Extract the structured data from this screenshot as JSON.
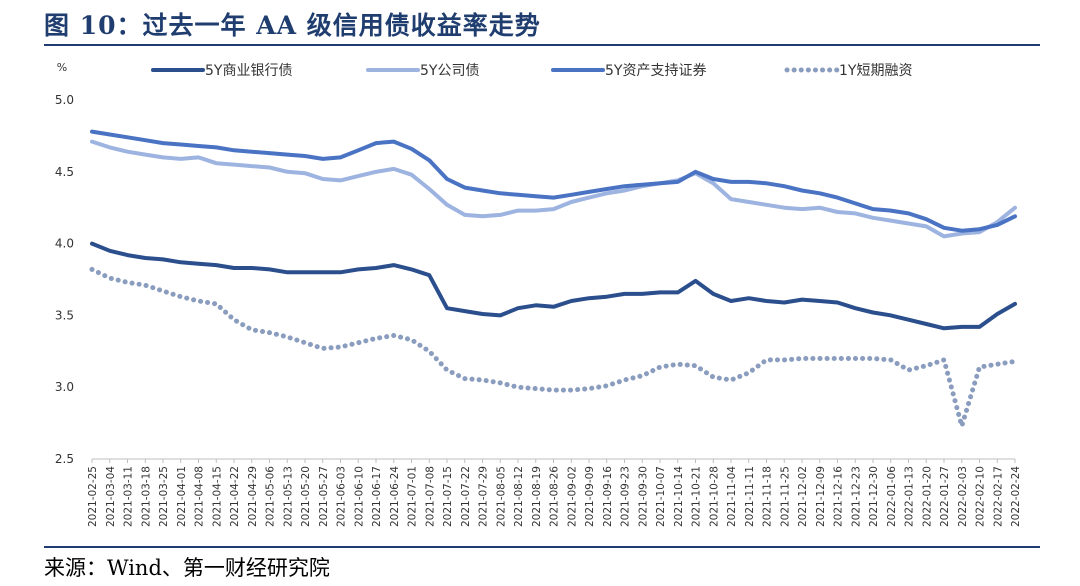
{
  "title": "图 10：过去一年 AA 级信用债收益率走势",
  "source": "来源：Wind、第一财经研究院",
  "chart_data": {
    "type": "line",
    "ylabel": "%",
    "ylim": [
      2.5,
      5.0
    ],
    "yticks": [
      "5.0",
      "4.5",
      "4.0",
      "3.5",
      "3.0",
      "2.5"
    ],
    "grid": false,
    "legend_position": "top",
    "categories": [
      "2021-02-25",
      "2021-03-04",
      "2021-03-11",
      "2021-03-18",
      "2021-03-25",
      "2021-04-01",
      "2021-04-08",
      "2021-04-15",
      "2021-04-22",
      "2021-04-29",
      "2021-05-06",
      "2021-05-13",
      "2021-05-20",
      "2021-05-27",
      "2021-06-03",
      "2021-06-10",
      "2021-06-17",
      "2021-06-24",
      "2021-07-01",
      "2021-07-08",
      "2021-07-15",
      "2021-07-22",
      "2021-07-29",
      "2021-08-05",
      "2021-08-12",
      "2021-08-19",
      "2021-08-26",
      "2021-09-02",
      "2021-09-09",
      "2021-09-16",
      "2021-09-23",
      "2021-09-30",
      "2021-10-07",
      "2021-10-14",
      "2021-10-21",
      "2021-10-28",
      "2021-11-04",
      "2021-11-11",
      "2021-11-18",
      "2021-11-25",
      "2021-12-02",
      "2021-12-09",
      "2021-12-16",
      "2021-12-23",
      "2021-12-30",
      "2022-01-06",
      "2022-01-13",
      "2022-01-20",
      "2022-01-27",
      "2022-02-03",
      "2022-02-10",
      "2022-02-17",
      "2022-02-24"
    ],
    "series": [
      {
        "name": "5Y商业银行债",
        "color": "#2b4e8c",
        "style": "solid",
        "width": 4,
        "values": [
          4.0,
          3.95,
          3.92,
          3.9,
          3.89,
          3.87,
          3.86,
          3.85,
          3.83,
          3.83,
          3.82,
          3.8,
          3.8,
          3.8,
          3.8,
          3.82,
          3.83,
          3.85,
          3.82,
          3.78,
          3.55,
          3.53,
          3.51,
          3.5,
          3.55,
          3.57,
          3.56,
          3.6,
          3.62,
          3.63,
          3.65,
          3.65,
          3.66,
          3.66,
          3.74,
          3.65,
          3.6,
          3.62,
          3.6,
          3.59,
          3.61,
          3.6,
          3.59,
          3.55,
          3.52,
          3.5,
          3.47,
          3.44,
          3.41,
          3.42,
          3.42,
          3.51,
          3.58
        ]
      },
      {
        "name": "5Y公司债",
        "color": "#9db3e0",
        "style": "solid",
        "width": 4,
        "values": [
          4.71,
          4.67,
          4.64,
          4.62,
          4.6,
          4.59,
          4.6,
          4.56,
          4.55,
          4.54,
          4.53,
          4.5,
          4.49,
          4.45,
          4.44,
          4.47,
          4.5,
          4.52,
          4.48,
          4.38,
          4.27,
          4.2,
          4.19,
          4.2,
          4.23,
          4.23,
          4.24,
          4.29,
          4.32,
          4.35,
          4.37,
          4.4,
          4.42,
          4.44,
          4.49,
          4.42,
          4.31,
          4.29,
          4.27,
          4.25,
          4.24,
          4.25,
          4.22,
          4.21,
          4.18,
          4.16,
          4.14,
          4.12,
          4.05,
          4.07,
          4.08,
          4.15,
          4.25
        ]
      },
      {
        "name": "5Y资产支持证券",
        "color": "#4a73c4",
        "style": "solid",
        "width": 4,
        "values": [
          4.78,
          4.76,
          4.74,
          4.72,
          4.7,
          4.69,
          4.68,
          4.67,
          4.65,
          4.64,
          4.63,
          4.62,
          4.61,
          4.59,
          4.6,
          4.65,
          4.7,
          4.71,
          4.66,
          4.58,
          4.45,
          4.39,
          4.37,
          4.35,
          4.34,
          4.33,
          4.32,
          4.34,
          4.36,
          4.38,
          4.4,
          4.41,
          4.42,
          4.43,
          4.5,
          4.45,
          4.43,
          4.43,
          4.42,
          4.4,
          4.37,
          4.35,
          4.32,
          4.28,
          4.24,
          4.23,
          4.21,
          4.17,
          4.11,
          4.09,
          4.1,
          4.13,
          4.19
        ]
      },
      {
        "name": "1Y短期融资",
        "color": "#8a9dbf",
        "style": "dotted",
        "width": 5,
        "values": [
          3.82,
          3.76,
          3.73,
          3.71,
          3.67,
          3.63,
          3.6,
          3.58,
          3.47,
          3.4,
          3.38,
          3.35,
          3.31,
          3.27,
          3.28,
          3.31,
          3.34,
          3.36,
          3.33,
          3.25,
          3.12,
          3.06,
          3.05,
          3.03,
          3.0,
          2.99,
          2.98,
          2.98,
          2.99,
          3.01,
          3.05,
          3.08,
          3.14,
          3.16,
          3.15,
          3.07,
          3.05,
          3.1,
          3.19,
          3.19,
          3.2,
          3.2,
          3.2,
          3.2,
          3.2,
          3.19,
          3.12,
          3.15,
          3.19,
          2.73,
          3.14,
          3.16,
          3.18
        ]
      }
    ]
  }
}
